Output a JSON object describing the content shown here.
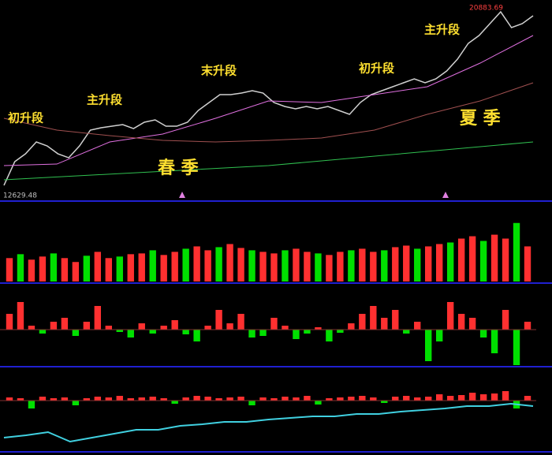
{
  "chart_data": [
    {
      "type": "line",
      "ylim": [
        12090,
        21320
      ],
      "high_label": "20883.69",
      "low_label": "12629.48",
      "annotations": [
        "初升段",
        "主升段",
        "末升段",
        "初升段",
        "主升段",
        "春 季",
        "夏 季"
      ],
      "series": [
        {
          "color": "#d0d0d0",
          "values": [
            12813,
            13899,
            14261,
            14804,
            14623,
            14261,
            14080,
            14623,
            15347,
            15456,
            15528,
            15600,
            15419,
            15709,
            15818,
            15528,
            15528,
            15709,
            16252,
            16614,
            16976,
            16976,
            17048,
            17157,
            17048,
            16614,
            16433,
            16324,
            16433,
            16324,
            16433,
            16252,
            16071,
            16614,
            16976,
            17157,
            17338,
            17519,
            17700,
            17519,
            17700,
            18062,
            18605,
            19329,
            19691,
            20234,
            20777,
            20053,
            20234,
            20596
          ]
        },
        {
          "color": "#e070e0",
          "values": [
            13718,
            13790,
            14804,
            15166,
            15890,
            16686,
            16614,
            16976,
            17338,
            18424,
            19691
          ]
        },
        {
          "color": "#a05050",
          "values": [
            15890,
            15347,
            15094,
            14876,
            14804,
            14876,
            14985,
            15347,
            16071,
            16686,
            17519
          ]
        },
        {
          "color": "#30c050",
          "values": [
            13066,
            13718,
            14804
          ]
        }
      ]
    },
    {
      "type": "bar",
      "ylim": [
        0,
        100
      ],
      "up_color": "#ff3030",
      "down_color": "#00e000",
      "values": [
        30,
        35,
        28,
        32,
        36,
        30,
        25,
        33,
        38,
        30,
        32,
        35,
        36,
        40,
        34,
        38,
        42,
        45,
        40,
        44,
        48,
        43,
        40,
        38,
        36,
        40,
        42,
        38,
        36,
        34,
        38,
        40,
        42,
        38,
        40,
        44,
        46,
        42,
        45,
        48,
        50,
        55,
        58,
        52,
        60,
        55,
        75,
        45
      ]
    },
    {
      "type": "signed-bar",
      "ylim": [
        -44,
        56
      ],
      "up_color": "#ff3030",
      "down_color": "#00e000",
      "values": [
        20,
        35,
        5,
        -5,
        10,
        15,
        -8,
        10,
        30,
        5,
        -3,
        -10,
        8,
        -5,
        5,
        12,
        -6,
        -15,
        5,
        25,
        8,
        20,
        -10,
        -8,
        15,
        5,
        -12,
        -5,
        3,
        -15,
        -4,
        8,
        20,
        30,
        15,
        25,
        -5,
        10,
        -40,
        -15,
        35,
        20,
        15,
        -10,
        -30,
        25,
        -45,
        10
      ]
    },
    {
      "type": "combo",
      "ylim": [
        -62,
        38
      ],
      "up_color": "#ff3030",
      "down_color": "#00e000",
      "line_color": "#40d0e0",
      "values": [
        4,
        3,
        -10,
        5,
        3,
        4,
        -6,
        3,
        5,
        4,
        6,
        3,
        4,
        5,
        3,
        -4,
        4,
        6,
        5,
        3,
        4,
        5,
        -6,
        4,
        3,
        5,
        4,
        6,
        -5,
        3,
        4,
        5,
        6,
        4,
        -3,
        5,
        6,
        4,
        5,
        8,
        6,
        7,
        10,
        8,
        9,
        12,
        -10,
        6
      ],
      "line": [
        -47,
        -44,
        -40,
        -52,
        -47,
        -42,
        -37,
        -37,
        -32,
        -30,
        -27,
        -27,
        -24,
        -22,
        -20,
        -20,
        -17,
        -17,
        -14,
        -12,
        -10,
        -7,
        -7,
        -4,
        -7
      ]
    }
  ]
}
